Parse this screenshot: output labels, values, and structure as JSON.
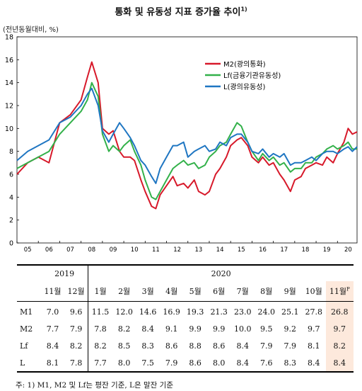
{
  "title": "통화 및 유동성 지표 증가율 추이",
  "title_sup": "1)",
  "chart_data": {
    "type": "line",
    "unit_label": "(전년동월대비, %)",
    "ylim": [
      0,
      18
    ],
    "yticks": [
      0,
      2,
      4,
      6,
      8,
      10,
      12,
      14,
      16,
      18
    ],
    "x_tick_labels": [
      "05",
      "06",
      "07",
      "08",
      "09",
      "10",
      "11",
      "12",
      "13",
      "14",
      "15",
      "16",
      "17",
      "18",
      "19",
      "20"
    ],
    "x_start": 2005.0,
    "x_end": 2020.917,
    "legend_position": "top-right",
    "series": [
      {
        "name": "M2(광의통화)",
        "color": "#d7192a",
        "x": [
          2005.0,
          2005.5,
          2006.0,
          2006.5,
          2007.0,
          2007.5,
          2008.0,
          2008.3,
          2008.5,
          2008.8,
          2009.0,
          2009.3,
          2009.5,
          2009.8,
          2010.0,
          2010.3,
          2010.5,
          2010.8,
          2011.0,
          2011.3,
          2011.5,
          2011.7,
          2012.0,
          2012.3,
          2012.5,
          2012.8,
          2013.0,
          2013.3,
          2013.5,
          2013.8,
          2014.0,
          2014.3,
          2014.5,
          2014.8,
          2015.0,
          2015.3,
          2015.5,
          2015.8,
          2016.0,
          2016.3,
          2016.5,
          2016.8,
          2017.0,
          2017.3,
          2017.5,
          2017.8,
          2018.0,
          2018.3,
          2018.5,
          2018.8,
          2019.0,
          2019.3,
          2019.5,
          2019.8,
          2020.0,
          2020.3,
          2020.5,
          2020.7,
          2020.917
        ],
        "y": [
          6.0,
          7.0,
          7.5,
          7.0,
          10.5,
          11.2,
          12.5,
          14.5,
          15.8,
          14.0,
          10.0,
          9.5,
          9.8,
          8.0,
          7.5,
          7.5,
          7.2,
          5.5,
          4.5,
          3.2,
          3.0,
          4.2,
          5.0,
          5.8,
          5.0,
          5.2,
          4.8,
          5.5,
          4.5,
          4.2,
          4.5,
          6.0,
          6.5,
          7.5,
          8.5,
          9.0,
          9.2,
          8.5,
          7.5,
          7.0,
          7.5,
          6.8,
          7.0,
          6.0,
          5.5,
          4.5,
          5.5,
          5.8,
          6.5,
          6.8,
          7.0,
          6.8,
          7.5,
          7.0,
          7.8,
          8.8,
          10.0,
          9.5,
          9.7
        ]
      },
      {
        "name": "Lf(금융기관유동성)",
        "color": "#33b14a",
        "x": [
          2005.0,
          2005.5,
          2006.0,
          2006.5,
          2007.0,
          2007.5,
          2008.0,
          2008.3,
          2008.5,
          2008.8,
          2009.0,
          2009.3,
          2009.5,
          2009.8,
          2010.0,
          2010.3,
          2010.5,
          2010.8,
          2011.0,
          2011.3,
          2011.5,
          2011.7,
          2012.0,
          2012.3,
          2012.5,
          2012.8,
          2013.0,
          2013.3,
          2013.5,
          2013.8,
          2014.0,
          2014.3,
          2014.5,
          2014.8,
          2015.0,
          2015.3,
          2015.5,
          2015.8,
          2016.0,
          2016.3,
          2016.5,
          2016.8,
          2017.0,
          2017.3,
          2017.5,
          2017.8,
          2018.0,
          2018.3,
          2018.5,
          2018.8,
          2019.0,
          2019.3,
          2019.5,
          2019.8,
          2020.0,
          2020.3,
          2020.5,
          2020.7,
          2020.917
        ],
        "y": [
          6.5,
          7.0,
          7.5,
          8.0,
          9.5,
          10.5,
          11.5,
          12.5,
          14.0,
          12.8,
          9.5,
          8.0,
          8.5,
          8.0,
          8.5,
          9.0,
          8.0,
          6.8,
          5.5,
          4.0,
          3.8,
          4.5,
          5.5,
          6.5,
          6.8,
          7.2,
          6.8,
          7.0,
          6.5,
          6.8,
          7.5,
          8.0,
          8.5,
          8.8,
          9.5,
          10.5,
          10.2,
          8.8,
          8.0,
          7.2,
          7.8,
          7.2,
          7.5,
          6.8,
          7.0,
          6.2,
          6.5,
          6.5,
          7.0,
          7.0,
          7.5,
          7.8,
          8.2,
          8.5,
          8.2,
          8.5,
          8.8,
          8.2,
          8.2
        ]
      },
      {
        "name": "L(광의유동성)",
        "color": "#1f76c2",
        "x": [
          2005.0,
          2005.5,
          2006.0,
          2006.5,
          2007.0,
          2007.5,
          2008.0,
          2008.3,
          2008.5,
          2008.8,
          2009.0,
          2009.3,
          2009.5,
          2009.8,
          2010.0,
          2010.3,
          2010.5,
          2010.8,
          2011.0,
          2011.3,
          2011.5,
          2011.7,
          2012.0,
          2012.3,
          2012.5,
          2012.8,
          2013.0,
          2013.3,
          2013.5,
          2013.8,
          2014.0,
          2014.3,
          2014.5,
          2014.8,
          2015.0,
          2015.3,
          2015.5,
          2015.8,
          2016.0,
          2016.3,
          2016.5,
          2016.8,
          2017.0,
          2017.3,
          2017.5,
          2017.8,
          2018.0,
          2018.3,
          2018.5,
          2018.8,
          2019.0,
          2019.3,
          2019.5,
          2019.8,
          2020.0,
          2020.3,
          2020.5,
          2020.7,
          2020.917
        ],
        "y": [
          7.2,
          8.0,
          8.5,
          9.0,
          10.5,
          11.0,
          12.0,
          13.0,
          13.5,
          12.0,
          9.8,
          8.8,
          9.5,
          10.5,
          10.0,
          9.2,
          8.5,
          7.2,
          6.8,
          5.8,
          5.2,
          6.5,
          7.5,
          8.5,
          8.5,
          8.8,
          7.5,
          8.0,
          8.2,
          8.5,
          8.0,
          8.2,
          8.8,
          8.5,
          9.2,
          9.5,
          9.5,
          8.8,
          8.0,
          7.8,
          8.2,
          7.5,
          7.8,
          7.5,
          7.8,
          6.8,
          7.0,
          7.0,
          7.2,
          7.5,
          7.2,
          7.8,
          8.0,
          8.0,
          7.8,
          8.2,
          8.4,
          8.0,
          8.4
        ]
      }
    ]
  },
  "table": {
    "year_headers": [
      "2019",
      "2020"
    ],
    "months": [
      "11월",
      "12월",
      "1월",
      "2월",
      "3월",
      "4월",
      "5월",
      "6월",
      "7월",
      "8월",
      "9월",
      "10월",
      "11월"
    ],
    "last_month_sup": "P",
    "rows": [
      {
        "label": "M1",
        "values": [
          "7.0",
          "9.6",
          "11.5",
          "12.0",
          "14.6",
          "16.9",
          "19.3",
          "21.3",
          "23.0",
          "24.0",
          "25.1",
          "27.8",
          "26.8"
        ]
      },
      {
        "label": "M2",
        "values": [
          "7.7",
          "7.9",
          "7.8",
          "8.2",
          "8.4",
          "9.1",
          "9.9",
          "9.9",
          "10.0",
          "9.5",
          "9.2",
          "9.7",
          "9.7"
        ]
      },
      {
        "label": "Lf",
        "values": [
          "8.4",
          "8.2",
          "8.2",
          "8.5",
          "8.3",
          "8.6",
          "8.8",
          "8.6",
          "8.4",
          "7.9",
          "7.9",
          "8.1",
          "8.2"
        ]
      },
      {
        "label": "L",
        "values": [
          "8.1",
          "7.8",
          "7.7",
          "8.0",
          "7.5",
          "7.9",
          "8.6",
          "8.0",
          "8.4",
          "7.6",
          "8.3",
          "8.4",
          "8.4"
        ]
      }
    ]
  },
  "note": "주: 1) M1, M2 및 Lf는 평잔 기준, L은 말잔 기준"
}
